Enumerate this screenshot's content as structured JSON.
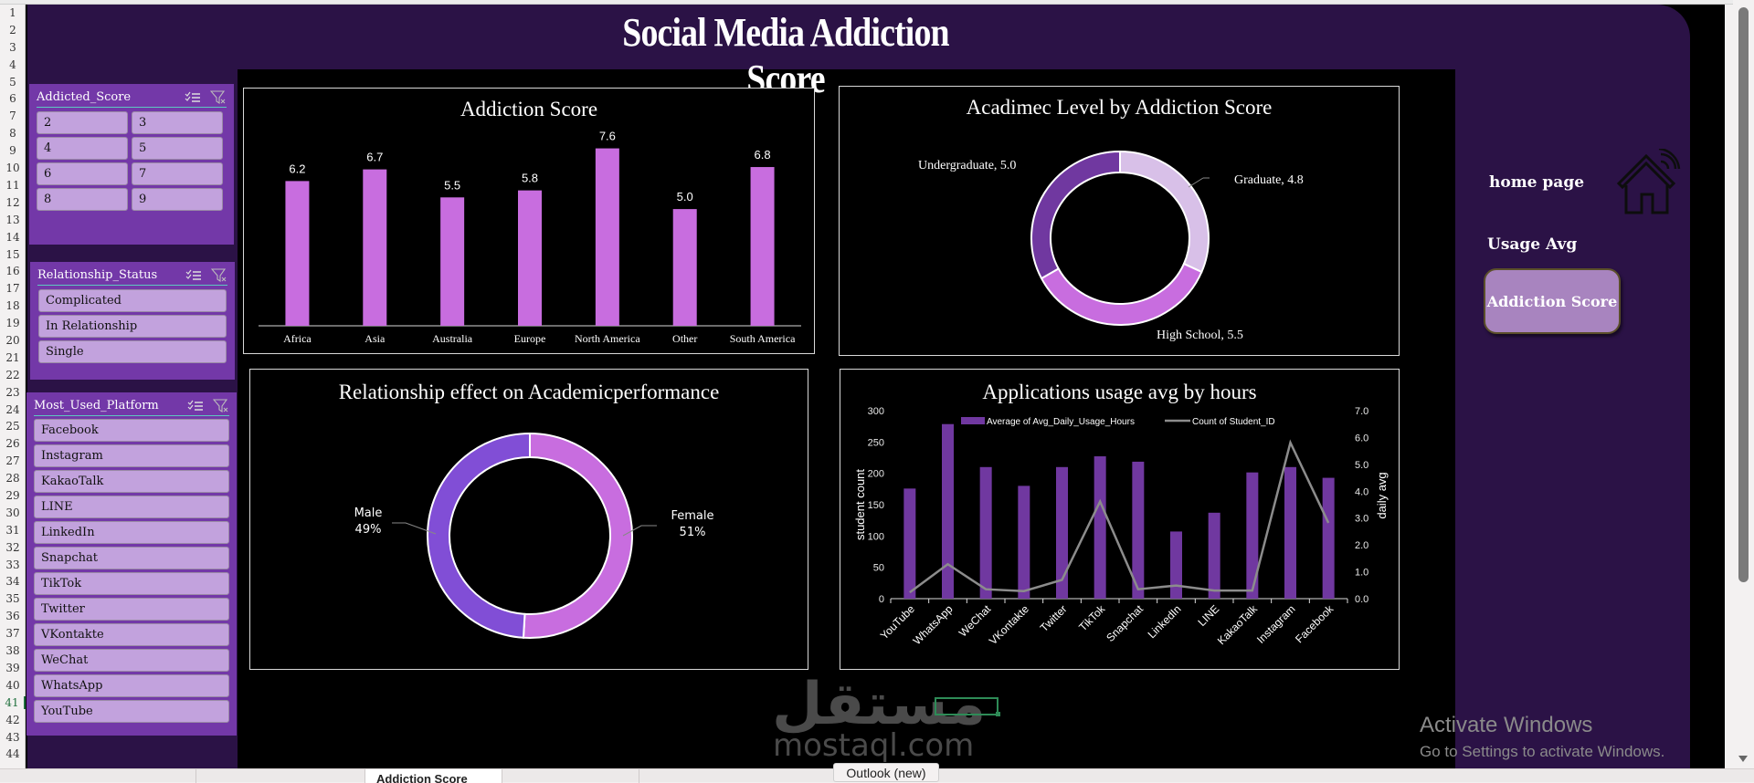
{
  "dashboard": {
    "title": "Social Media Addiction Score"
  },
  "row_numbers": [
    "1",
    "2",
    "3",
    "4",
    "5",
    "6",
    "7",
    "8",
    "9",
    "10",
    "11",
    "12",
    "13",
    "14",
    "15",
    "16",
    "17",
    "18",
    "19",
    "20",
    "21",
    "22",
    "23",
    "24",
    "25",
    "26",
    "27",
    "28",
    "29",
    "30",
    "31",
    "32",
    "33",
    "34",
    "35",
    "36",
    "37",
    "38",
    "39",
    "40",
    "41",
    "42",
    "43",
    "44"
  ],
  "slicers": {
    "addicted_score": {
      "title": "Addicted_Score",
      "items": [
        "2",
        "3",
        "4",
        "5",
        "6",
        "7",
        "8",
        "9"
      ]
    },
    "relationship_status": {
      "title": "Relationship_Status",
      "items": [
        "Complicated",
        "In Relationship",
        "Single"
      ]
    },
    "most_used_platform": {
      "title": "Most_Used_Platform",
      "items": [
        "Facebook",
        "Instagram",
        "KakaoTalk",
        "LINE",
        "LinkedIn",
        "Snapchat",
        "TikTok",
        "Twitter",
        "VKontakte",
        "WeChat",
        "WhatsApp",
        "YouTube"
      ]
    }
  },
  "nav": {
    "home_label": "home page",
    "usage_label": "Usage Avg",
    "addiction_button": "Addiction Score"
  },
  "colors": {
    "frame": "#2b1246",
    "slicer": "#7338a8",
    "slicer_button": "#c2a2dd",
    "bar_pink": "#c86ddf",
    "bar_purple": "#7038a0",
    "donut_dark": "#7038a0",
    "donut_light": "#d8c0e8",
    "donut_pink": "#c86ddf",
    "male": "#814ed6",
    "line_gray": "#8c8c8c"
  },
  "chart_data": [
    {
      "type": "bar",
      "title": "Addiction Score",
      "categories": [
        "Africa",
        "Asia",
        "Australia",
        "Europe",
        "North America",
        "Other",
        "South America"
      ],
      "values": [
        6.2,
        6.7,
        5.5,
        5.8,
        7.6,
        5.0,
        6.8
      ],
      "value_labels": [
        "6.2",
        "6.7",
        "5.5",
        "5.8",
        "7.6",
        "5.0",
        "6.8"
      ],
      "xlabel": "",
      "ylabel": "",
      "ylim": [
        0,
        8
      ],
      "grid": false,
      "legend": "none"
    },
    {
      "type": "pie",
      "title": "Acadimec Level by Addiction Score",
      "donut": true,
      "categories": [
        "Graduate",
        "High School",
        "Undergraduate"
      ],
      "values": [
        4.8,
        5.5,
        5.0
      ],
      "labels": [
        "Graduate, 4.8",
        "High School, 5.5",
        "Undergraduate, 5.0"
      ]
    },
    {
      "type": "pie",
      "title": "Relationship effect on Academicperformance",
      "donut": true,
      "categories": [
        "Female",
        "Male"
      ],
      "values": [
        51,
        49
      ],
      "labels": [
        [
          "Female",
          "51%"
        ],
        [
          "Male",
          "49%"
        ]
      ]
    },
    {
      "type": "bar",
      "title": "Applications usage avg by hours",
      "categories": [
        "YouTube",
        "WhatsApp",
        "WeChat",
        "VKontakte",
        "Twitter",
        "TikTok",
        "Snapchat",
        "LinkedIn",
        "LINE",
        "KakaoTalk",
        "Instagram",
        "Facebook"
      ],
      "series": [
        {
          "name": "Average of Avg_Daily_Usage_Hours",
          "type": "bar",
          "axis": "right",
          "values": [
            4.1,
            6.5,
            4.9,
            4.2,
            4.9,
            5.3,
            5.1,
            2.5,
            3.2,
            4.7,
            4.9,
            4.5
          ]
        },
        {
          "name": "Count of Student_ID",
          "type": "line",
          "axis": "left",
          "values": [
            10,
            55,
            15,
            12,
            30,
            155,
            15,
            21,
            13,
            13,
            249,
            121
          ]
        }
      ],
      "ylabel": "student count",
      "y2label": "daily avg",
      "ylim": [
        0,
        300
      ],
      "y2lim": [
        0,
        7
      ],
      "yticks": [
        "0",
        "50",
        "100",
        "150",
        "200",
        "250",
        "300"
      ],
      "y2ticks": [
        "0.0",
        "1.0",
        "2.0",
        "3.0",
        "4.0",
        "5.0",
        "6.0",
        "7.0"
      ],
      "legend": "top"
    }
  ],
  "sheet_tabs": [
    "",
    "",
    "Addiction Score",
    ""
  ],
  "overlay": {
    "watermark_ar": "مستقل",
    "watermark_en": "mostaql.com",
    "tooltip": "Outlook (new)",
    "activate_title": "Activate Windows",
    "activate_sub": "Go to Settings to activate Windows."
  }
}
